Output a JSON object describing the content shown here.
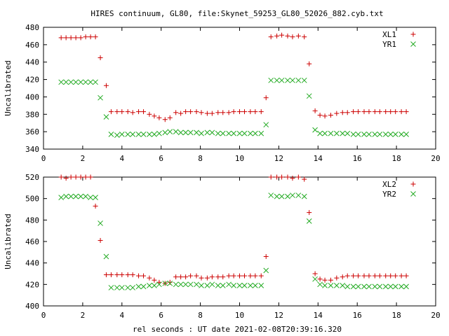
{
  "title": "HIRES continuum, GL80, file:Skynet_59253_GL80_52026_882.cyb.txt",
  "xlabel": "rel seconds : UT date 2021-02-08T20:39:16.320",
  "colors": {
    "plus": "#cc0000",
    "cross": "#22aa22",
    "axis": "#000000"
  },
  "chart_data": [
    {
      "type": "scatter",
      "ylabel": "Uncalibrated",
      "xlim": [
        0,
        20
      ],
      "ylim": [
        340,
        480
      ],
      "xticks": [
        "0",
        "2",
        "4",
        "6",
        "8",
        "10",
        "12",
        "14",
        "16",
        "18",
        "20"
      ],
      "yticks": [
        "340",
        "360",
        "380",
        "400",
        "420",
        "440",
        "460",
        "480"
      ],
      "x": [
        0.9,
        1.15,
        1.4,
        1.65,
        1.9,
        2.15,
        2.4,
        2.65,
        2.9,
        3.2,
        3.45,
        3.75,
        4.0,
        4.3,
        4.55,
        4.85,
        5.1,
        5.4,
        5.65,
        5.9,
        6.2,
        6.45,
        6.75,
        7.0,
        7.25,
        7.5,
        7.8,
        8.05,
        8.35,
        8.6,
        8.9,
        9.15,
        9.45,
        9.7,
        10.0,
        10.25,
        10.55,
        10.8,
        11.1,
        11.35,
        11.6,
        11.9,
        12.15,
        12.45,
        12.7,
        13.0,
        13.3,
        13.55,
        13.85,
        14.1,
        14.35,
        14.65,
        14.95,
        15.25,
        15.5,
        15.8,
        16.05,
        16.35,
        16.6,
        16.9,
        17.15,
        17.45,
        17.7,
        17.95,
        18.25,
        18.5
      ],
      "series": [
        {
          "name": "XL1",
          "marker": "plus",
          "values": [
            468,
            468,
            468,
            468,
            468,
            469,
            469,
            469,
            445,
            413,
            383,
            383,
            383,
            383,
            382,
            383,
            383,
            380,
            378,
            376,
            374,
            376,
            382,
            381,
            383,
            383,
            383,
            382,
            381,
            381,
            382,
            382,
            382,
            383,
            383,
            383,
            383,
            383,
            383,
            399,
            469,
            470,
            471,
            470,
            469,
            470,
            469,
            438,
            384,
            379,
            378,
            379,
            381,
            382,
            382,
            383,
            383,
            383,
            383,
            383,
            383,
            383,
            383,
            383,
            383,
            383
          ]
        },
        {
          "name": "YR1",
          "marker": "cross",
          "values": [
            417,
            417,
            417,
            417,
            417,
            417,
            417,
            417,
            399,
            377,
            357,
            356,
            357,
            357,
            357,
            357,
            357,
            357,
            357,
            358,
            359,
            360,
            360,
            359,
            359,
            359,
            359,
            358,
            359,
            359,
            358,
            358,
            358,
            358,
            358,
            358,
            358,
            358,
            358,
            368,
            419,
            419,
            419,
            419,
            419,
            419,
            419,
            401,
            362,
            358,
            358,
            358,
            358,
            358,
            358,
            357,
            357,
            357,
            357,
            357,
            357,
            357,
            357,
            357,
            357,
            357
          ]
        }
      ],
      "legend": "top-right"
    },
    {
      "type": "scatter",
      "ylabel": "Uncalibrated",
      "xlim": [
        0,
        20
      ],
      "ylim": [
        400,
        520
      ],
      "xticks": [
        "0",
        "2",
        "4",
        "6",
        "8",
        "10",
        "12",
        "14",
        "16",
        "18",
        "20"
      ],
      "yticks": [
        "400",
        "420",
        "440",
        "460",
        "480",
        "500",
        "520"
      ],
      "x": [
        0.9,
        1.15,
        1.4,
        1.65,
        1.9,
        2.15,
        2.4,
        2.65,
        2.9,
        3.2,
        3.45,
        3.75,
        4.0,
        4.3,
        4.55,
        4.85,
        5.1,
        5.4,
        5.65,
        5.9,
        6.2,
        6.45,
        6.75,
        7.0,
        7.25,
        7.5,
        7.8,
        8.05,
        8.35,
        8.6,
        8.9,
        9.15,
        9.45,
        9.7,
        10.0,
        10.25,
        10.55,
        10.8,
        11.1,
        11.35,
        11.6,
        11.9,
        12.15,
        12.45,
        12.7,
        13.0,
        13.3,
        13.55,
        13.85,
        14.1,
        14.35,
        14.65,
        14.95,
        15.25,
        15.5,
        15.8,
        16.05,
        16.35,
        16.6,
        16.9,
        17.15,
        17.45,
        17.7,
        17.95,
        18.25,
        18.5
      ],
      "series": [
        {
          "name": "XL2",
          "marker": "plus",
          "values": [
            520,
            519,
            520,
            520,
            520,
            520,
            520,
            493,
            461,
            429,
            429,
            429,
            429,
            429,
            429,
            428,
            428,
            426,
            424,
            422,
            421,
            422,
            427,
            427,
            427,
            428,
            428,
            426,
            426,
            427,
            427,
            427,
            428,
            428,
            428,
            428,
            428,
            428,
            428,
            446,
            520,
            520,
            520,
            520,
            519,
            520,
            518,
            487,
            430,
            425,
            424,
            424,
            426,
            427,
            428,
            428,
            428,
            428,
            428,
            428,
            428,
            428,
            428,
            428,
            428,
            428
          ]
        },
        {
          "name": "YR2",
          "marker": "cross",
          "values": [
            501,
            502,
            502,
            502,
            502,
            502,
            501,
            501,
            477,
            446,
            417,
            417,
            417,
            417,
            417,
            418,
            418,
            419,
            419,
            420,
            421,
            421,
            420,
            420,
            420,
            420,
            420,
            419,
            419,
            420,
            419,
            419,
            420,
            419,
            419,
            419,
            419,
            419,
            419,
            433,
            503,
            502,
            502,
            502,
            503,
            503,
            502,
            479,
            425,
            420,
            419,
            419,
            419,
            419,
            418,
            418,
            418,
            418,
            418,
            418,
            418,
            418,
            418,
            418,
            418,
            418
          ]
        }
      ],
      "legend": "top-right"
    }
  ]
}
